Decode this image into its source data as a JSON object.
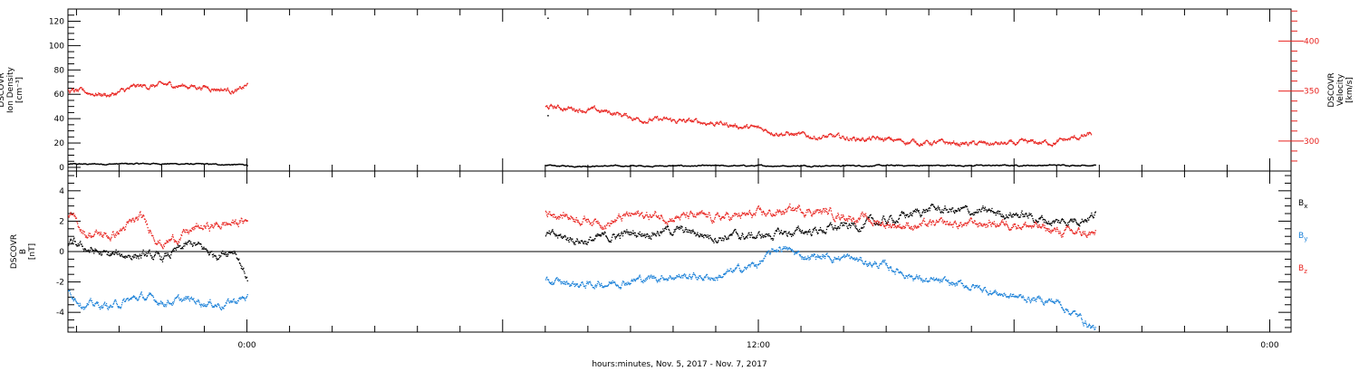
{
  "colors": {
    "black": "#000000",
    "red": "#e8231f",
    "blue": "#1a80d8"
  },
  "xaxis": {
    "title": "hours:minutes, Nov.  5, 2017 - Nov.  7, 2017",
    "range_hours": [
      -4.2,
      24.5
    ],
    "ticks": [
      {
        "h": 0,
        "label": "0:00"
      },
      {
        "h": 12,
        "label": "12:00"
      },
      {
        "h": 24,
        "label": "0:00"
      }
    ]
  },
  "chart_data": [
    {
      "type": "scatter",
      "panel": "plasma",
      "ylabel_left": [
        "DSCOVR",
        "Ion Density",
        "[cm⁻³]"
      ],
      "ylabel_right": [
        "DSCOVR",
        "Velocity",
        "[km/s]"
      ],
      "ylim_left": [
        -3,
        130
      ],
      "ylim_right": [
        270,
        432
      ],
      "yticks_left": [
        0,
        20,
        40,
        60,
        80,
        100,
        120
      ],
      "yticks_right": [
        300,
        350,
        400
      ],
      "series": [
        {
          "axis": "left",
          "color": "black",
          "segments": [
            {
              "x": [
                -4.2,
                -2.0,
                0.0
              ],
              "y": [
                2.5,
                3,
                2
              ]
            },
            {
              "x": [
                7.0,
                12.0,
                17.5,
                19.9
              ],
              "y": [
                1,
                1.2,
                1.5,
                1.8
              ]
            }
          ],
          "outliers": [
            [
              7.05,
              123
            ],
            [
              7.05,
              43
            ]
          ]
        },
        {
          "axis": "right",
          "color": "red",
          "segments": [
            {
              "x": [
                -4.2,
                -3.2,
                -2.6,
                -1.8,
                -1.0,
                -0.2,
                0.0
              ],
              "y": [
                350,
                346,
                354,
                356,
                354,
                350,
                356
              ]
            },
            {
              "x": [
                7.0,
                7.8,
                8.6,
                9.2,
                10.0,
                11.0,
                12.0,
                13.0,
                14.0,
                15.0,
                16.0,
                17.0,
                18.0,
                19.0,
                19.8
              ],
              "y": [
                334,
                332,
                328,
                322,
                320,
                318,
                312,
                305,
                303,
                301,
                298,
                297,
                297,
                299,
                306
              ]
            }
          ]
        }
      ]
    },
    {
      "type": "scatter",
      "panel": "magnetic-field",
      "ylabel_left": [
        "DSCOVR",
        "B",
        "[nT]"
      ],
      "ylim": [
        -5.3,
        5.3
      ],
      "yticks": [
        -4,
        -2,
        0,
        2,
        4
      ],
      "legend": [
        {
          "label": "Bx",
          "color": "black"
        },
        {
          "label": "By",
          "color": "blue"
        },
        {
          "label": "Bz",
          "color": "red"
        }
      ],
      "series": [
        {
          "name": "Bx",
          "color": "black",
          "segments": [
            {
              "x": [
                -4.2,
                -3.8,
                -3.3,
                -2.7,
                -2.0,
                -1.3,
                -0.8,
                -0.3,
                0.0
              ],
              "y": [
                0.5,
                0.2,
                -0.3,
                -0.2,
                -0.5,
                0.5,
                -0.2,
                0.2,
                -1.8
              ]
            },
            {
              "x": [
                7.0,
                8.0,
                9.0,
                10.0,
                11.0,
                12.0,
                13.0,
                14.0,
                15.0,
                16.0,
                17.0,
                18.0,
                19.0,
                19.9
              ],
              "y": [
                1.0,
                0.7,
                1.2,
                1.4,
                1.0,
                1.0,
                1.3,
                1.6,
                2.0,
                2.8,
                2.6,
                2.5,
                1.9,
                2.4
              ]
            }
          ]
        },
        {
          "name": "By",
          "color": "blue",
          "segments": [
            {
              "x": [
                -4.2,
                -3.8,
                -3.2,
                -2.5,
                -2.0,
                -1.3,
                -0.6,
                0.0
              ],
              "y": [
                -2.6,
                -3.5,
                -3.6,
                -3.0,
                -3.3,
                -3.2,
                -3.5,
                -3.0
              ]
            },
            {
              "x": [
                7.0,
                8.0,
                9.0,
                10.0,
                11.0,
                12.0,
                12.5,
                13.0,
                14.0,
                15.0,
                16.0,
                17.0,
                18.0,
                19.0,
                19.9
              ],
              "y": [
                -2.0,
                -2.2,
                -1.9,
                -1.6,
                -1.7,
                -0.8,
                0.3,
                -0.3,
                -0.4,
                -1.0,
                -2.0,
                -2.3,
                -3.0,
                -3.3,
                -5.1
              ]
            }
          ]
        },
        {
          "name": "Bz",
          "color": "red",
          "segments": [
            {
              "x": [
                -4.2,
                -3.8,
                -3.2,
                -2.5,
                -2.0,
                -1.2,
                -0.5,
                0.0
              ],
              "y": [
                2.5,
                1.2,
                1.0,
                2.2,
                0.5,
                1.5,
                1.8,
                2.0
              ]
            },
            {
              "x": [
                7.0,
                8.0,
                8.5,
                9.0,
                10.0,
                11.0,
                12.0,
                13.0,
                14.0,
                15.0,
                16.0,
                17.0,
                18.0,
                19.0,
                19.9
              ],
              "y": [
                2.6,
                2.1,
                1.9,
                2.4,
                2.3,
                2.2,
                2.4,
                2.8,
                2.4,
                1.8,
                1.7,
                1.8,
                1.9,
                1.3,
                1.1
              ]
            }
          ]
        }
      ]
    }
  ]
}
